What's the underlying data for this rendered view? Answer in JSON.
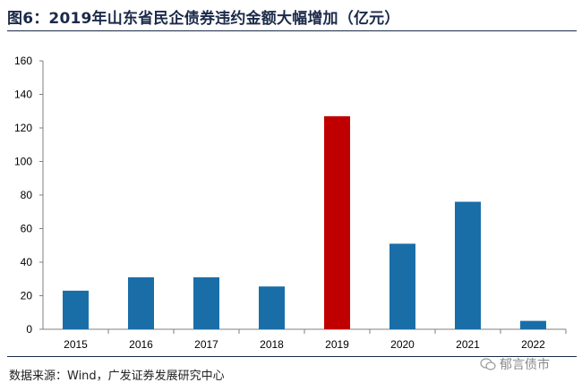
{
  "header": {
    "title": "图6：2019年山东省民企债券违约金额大幅增加（亿元）"
  },
  "footer": {
    "source": "数据来源：Wind，广发证券发展研究中心",
    "watermark": "郁言债市"
  },
  "colors": {
    "bar": "#1a6ea8",
    "highlight": "#c00000",
    "title": "#1b2a4a"
  },
  "chart_data": {
    "type": "bar",
    "title": "",
    "xlabel": "",
    "ylabel": "",
    "categories": [
      "2015",
      "2016",
      "2017",
      "2018",
      "2019",
      "2020",
      "2021",
      "2022"
    ],
    "values": [
      23,
      31,
      31,
      25.5,
      127,
      51,
      76,
      5
    ],
    "highlight_category": "2019",
    "ylim": [
      0,
      160
    ],
    "yticks": [
      0,
      20,
      40,
      60,
      80,
      100,
      120,
      140,
      160
    ],
    "grid": false,
    "legend": "none"
  }
}
